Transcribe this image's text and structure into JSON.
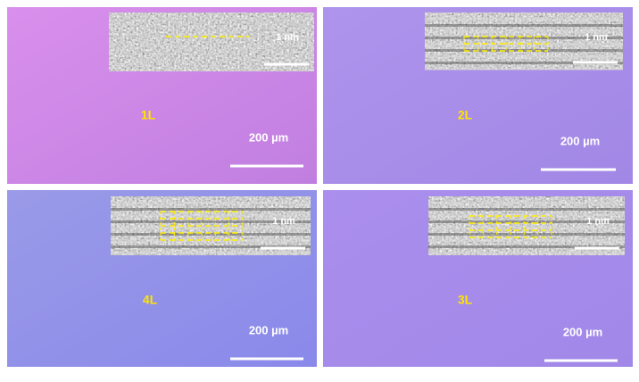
{
  "panels": [
    {
      "label": "1L",
      "scale_text": "200 µm",
      "inset_scale_text": "1 nm"
    },
    {
      "label": "2L",
      "scale_text": "200 µm",
      "inset_scale_text": "1 nm"
    },
    {
      "label": "4L",
      "scale_text": "200 µm",
      "inset_scale_text": "1 nm"
    },
    {
      "label": "3L",
      "scale_text": "200 µm",
      "inset_scale_text": "1 nm"
    }
  ]
}
